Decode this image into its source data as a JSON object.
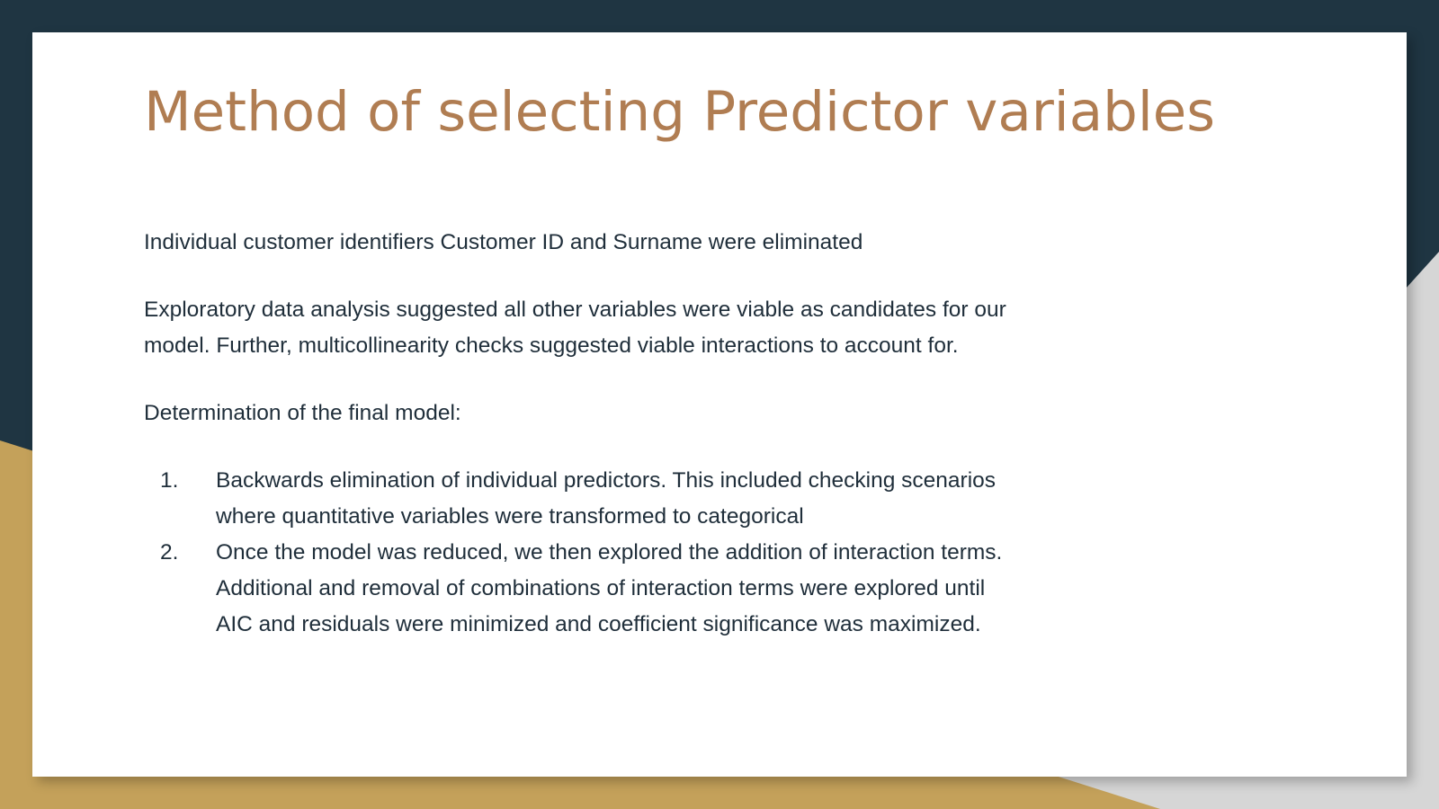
{
  "slide": {
    "title": "Method of selecting Predictor variables",
    "paragraphs": [
      "Individual customer identifiers Customer ID and Surname were eliminated",
      "Exploratory data analysis suggested all other variables were viable as candidates for our model. Further, multicollinearity checks suggested viable interactions to account for.",
      "Determination of the final model:"
    ],
    "steps": [
      {
        "number": "1.",
        "text": "Backwards elimination of individual predictors.  This included checking scenarios where quantitative variables were transformed to categorical"
      },
      {
        "number": "2.",
        "text": "Once the model was reduced, we then explored the addition of interaction terms.  Additional and removal of combinations of interaction terms were explored until AIC and residuals were minimized and coefficient significance was maximized."
      }
    ]
  },
  "colors": {
    "title": "#b07d52",
    "text": "#1f2e3a",
    "navy": "#1f3542",
    "gold": "#c4a15a",
    "grey": "#d6d6d6"
  }
}
